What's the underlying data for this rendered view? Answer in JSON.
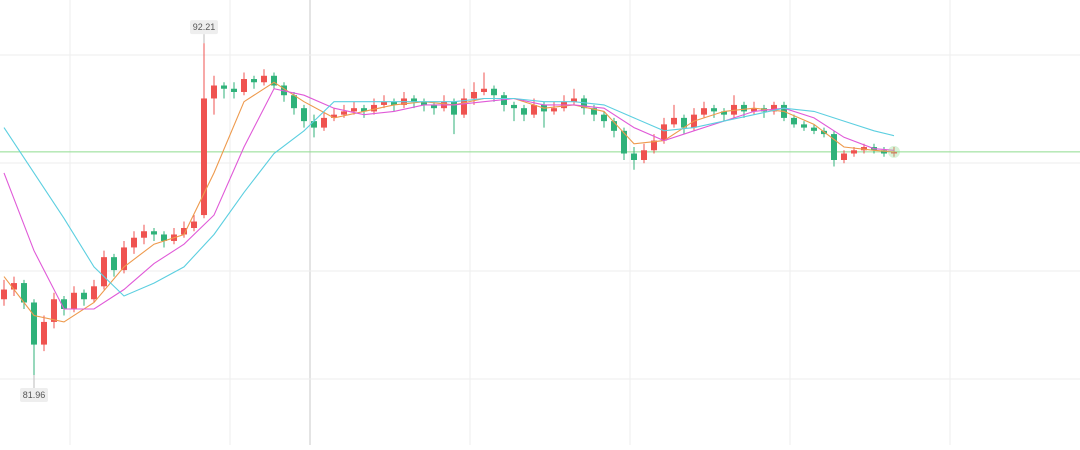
{
  "chart_data": {
    "type": "candlestick",
    "ylim": [
      79.8,
      93.54
    ],
    "xlim": [
      -0.4,
      107.6
    ],
    "up_color": "#ef5350",
    "down_color": "#2fb27a",
    "ohlc": [
      [
        84.3,
        84.9,
        84.1,
        84.6
      ],
      [
        84.6,
        85.0,
        84.4,
        84.8
      ],
      [
        84.8,
        84.9,
        84.0,
        84.2
      ],
      [
        84.2,
        84.3,
        81.96,
        82.9
      ],
      [
        82.9,
        83.8,
        82.7,
        83.6
      ],
      [
        83.6,
        84.5,
        83.4,
        84.3
      ],
      [
        84.3,
        84.4,
        83.8,
        84.0
      ],
      [
        84.0,
        84.7,
        83.9,
        84.5
      ],
      [
        84.5,
        84.6,
        84.1,
        84.3
      ],
      [
        84.3,
        84.9,
        84.2,
        84.7
      ],
      [
        84.7,
        85.8,
        84.6,
        85.6
      ],
      [
        85.6,
        85.7,
        85.0,
        85.2
      ],
      [
        85.2,
        86.1,
        85.1,
        85.9
      ],
      [
        85.9,
        86.4,
        85.7,
        86.2
      ],
      [
        86.2,
        86.6,
        86.0,
        86.4
      ],
      [
        86.4,
        86.5,
        86.1,
        86.3
      ],
      [
        86.3,
        86.4,
        85.9,
        86.1
      ],
      [
        86.1,
        86.5,
        86.0,
        86.3
      ],
      [
        86.3,
        86.7,
        86.2,
        86.5
      ],
      [
        86.5,
        86.9,
        86.4,
        86.7
      ],
      [
        86.9,
        92.21,
        86.8,
        90.5
      ],
      [
        90.5,
        91.2,
        90.0,
        90.9
      ],
      [
        90.9,
        91.0,
        90.5,
        90.8
      ],
      [
        90.8,
        91.0,
        90.5,
        90.7
      ],
      [
        90.7,
        91.3,
        90.6,
        91.1
      ],
      [
        91.1,
        91.2,
        90.8,
        91.0
      ],
      [
        91.0,
        91.4,
        90.9,
        91.2
      ],
      [
        91.2,
        91.3,
        90.8,
        90.9
      ],
      [
        90.9,
        91.0,
        90.4,
        90.6
      ],
      [
        90.6,
        90.7,
        90.0,
        90.2
      ],
      [
        90.2,
        90.3,
        89.6,
        89.8
      ],
      [
        89.8,
        90.0,
        89.3,
        89.6
      ],
      [
        89.6,
        90.1,
        89.5,
        89.9
      ],
      [
        89.9,
        90.2,
        89.8,
        90.0
      ],
      [
        90.0,
        90.3,
        89.9,
        90.1
      ],
      [
        90.1,
        90.4,
        90.0,
        90.2
      ],
      [
        90.2,
        90.3,
        89.9,
        90.1
      ],
      [
        90.1,
        90.5,
        90.0,
        90.3
      ],
      [
        90.3,
        90.6,
        90.2,
        90.4
      ],
      [
        90.4,
        90.5,
        90.1,
        90.3
      ],
      [
        90.3,
        90.7,
        90.2,
        90.5
      ],
      [
        90.5,
        90.6,
        90.2,
        90.4
      ],
      [
        90.4,
        90.5,
        90.1,
        90.3
      ],
      [
        90.3,
        90.4,
        90.0,
        90.2
      ],
      [
        90.2,
        90.6,
        90.1,
        90.4
      ],
      [
        90.4,
        90.5,
        89.4,
        90.0
      ],
      [
        90.0,
        90.8,
        89.9,
        90.5
      ],
      [
        90.5,
        91.0,
        90.3,
        90.7
      ],
      [
        90.7,
        91.3,
        90.6,
        90.8
      ],
      [
        90.8,
        90.9,
        90.4,
        90.6
      ],
      [
        90.6,
        90.7,
        90.1,
        90.3
      ],
      [
        90.3,
        90.4,
        89.8,
        90.2
      ],
      [
        90.2,
        90.3,
        89.8,
        90.0
      ],
      [
        90.0,
        90.5,
        89.9,
        90.3
      ],
      [
        90.3,
        90.4,
        89.6,
        90.1
      ],
      [
        90.1,
        90.4,
        90.0,
        90.2
      ],
      [
        90.2,
        90.6,
        90.1,
        90.4
      ],
      [
        90.4,
        90.8,
        90.3,
        90.5
      ],
      [
        90.5,
        90.6,
        90.0,
        90.2
      ],
      [
        90.2,
        90.3,
        89.8,
        90.0
      ],
      [
        90.0,
        90.1,
        89.6,
        89.8
      ],
      [
        89.8,
        89.9,
        89.3,
        89.5
      ],
      [
        89.5,
        89.6,
        88.6,
        88.8
      ],
      [
        88.8,
        89.0,
        88.3,
        88.6
      ],
      [
        88.6,
        89.1,
        88.5,
        88.9
      ],
      [
        88.9,
        89.4,
        88.8,
        89.2
      ],
      [
        89.2,
        89.9,
        89.1,
        89.7
      ],
      [
        89.7,
        90.3,
        89.6,
        89.9
      ],
      [
        89.9,
        90.0,
        89.4,
        89.6
      ],
      [
        89.6,
        90.2,
        89.5,
        90.0
      ],
      [
        90.0,
        90.4,
        89.9,
        90.2
      ],
      [
        90.2,
        90.3,
        89.9,
        90.1
      ],
      [
        90.1,
        90.2,
        89.8,
        90.0
      ],
      [
        90.0,
        90.6,
        89.9,
        90.3
      ],
      [
        90.3,
        90.4,
        89.9,
        90.1
      ],
      [
        90.1,
        90.4,
        90.0,
        90.2
      ],
      [
        90.2,
        90.3,
        89.9,
        90.1
      ],
      [
        90.1,
        90.4,
        90.0,
        90.3
      ],
      [
        90.3,
        90.4,
        89.8,
        89.9
      ],
      [
        89.9,
        90.0,
        89.6,
        89.7
      ],
      [
        89.7,
        89.8,
        89.5,
        89.6
      ],
      [
        89.6,
        89.7,
        89.4,
        89.5
      ],
      [
        89.5,
        89.6,
        89.3,
        89.4
      ],
      [
        89.4,
        89.5,
        88.4,
        88.6
      ],
      [
        88.6,
        88.9,
        88.5,
        88.8
      ],
      [
        88.8,
        89.0,
        88.7,
        88.9
      ],
      [
        88.9,
        89.1,
        88.8,
        89.0
      ],
      [
        89.0,
        89.1,
        88.8,
        88.9
      ],
      [
        88.9,
        89.0,
        88.7,
        88.8
      ],
      [
        88.8,
        89.0,
        88.7,
        88.85
      ]
    ],
    "lines": [
      {
        "color": "#ee9a4d",
        "x": [
          0,
          3,
          6,
          9,
          12,
          15,
          18,
          21,
          24,
          27,
          30,
          33,
          36,
          39,
          42,
          45,
          48,
          51,
          54,
          57,
          60,
          63,
          66,
          69,
          72,
          75,
          78,
          81,
          84,
          87,
          89
        ],
        "values": [
          85.0,
          83.8,
          83.6,
          84.2,
          85.3,
          86.0,
          86.3,
          88.2,
          90.4,
          91.0,
          90.4,
          89.9,
          90.1,
          90.3,
          90.4,
          90.3,
          90.5,
          90.5,
          90.2,
          90.3,
          90.1,
          89.1,
          89.2,
          89.8,
          90.1,
          90.2,
          90.1,
          89.7,
          89.0,
          88.9,
          88.85
        ]
      },
      {
        "color": "#e05ad8",
        "x": [
          0,
          3,
          6,
          9,
          12,
          15,
          18,
          21,
          24,
          27,
          30,
          33,
          36,
          39,
          42,
          45,
          48,
          51,
          54,
          57,
          60,
          63,
          66,
          69,
          72,
          75,
          78,
          81,
          84,
          87,
          89
        ],
        "values": [
          88.2,
          85.8,
          84.0,
          84.0,
          84.6,
          85.4,
          86.0,
          86.9,
          89.0,
          90.8,
          90.6,
          90.2,
          90.0,
          90.1,
          90.3,
          90.3,
          90.4,
          90.5,
          90.3,
          90.3,
          90.2,
          89.6,
          89.2,
          89.5,
          89.8,
          90.1,
          90.2,
          89.9,
          89.3,
          88.95,
          88.9
        ]
      },
      {
        "color": "#5ccfe0",
        "x": [
          0,
          3,
          6,
          9,
          12,
          15,
          18,
          21,
          24,
          27,
          30,
          33,
          36,
          39,
          42,
          45,
          48,
          51,
          54,
          57,
          60,
          63,
          66,
          69,
          72,
          75,
          78,
          81,
          84,
          87,
          89
        ],
        "values": [
          89.6,
          88.2,
          86.8,
          85.3,
          84.4,
          84.8,
          85.3,
          86.3,
          87.6,
          88.8,
          89.5,
          90.4,
          90.4,
          90.4,
          90.4,
          90.4,
          90.5,
          90.5,
          90.4,
          90.4,
          90.3,
          89.9,
          89.5,
          89.6,
          89.8,
          90.0,
          90.2,
          90.1,
          89.8,
          89.5,
          89.35
        ]
      }
    ],
    "last_price": 88.85,
    "last_price_color": "#8fdc8f",
    "markers": [
      {
        "value": 92.21,
        "candle": 20,
        "side": "above"
      },
      {
        "value": 81.96,
        "candle": 3,
        "side": "below"
      }
    ]
  }
}
